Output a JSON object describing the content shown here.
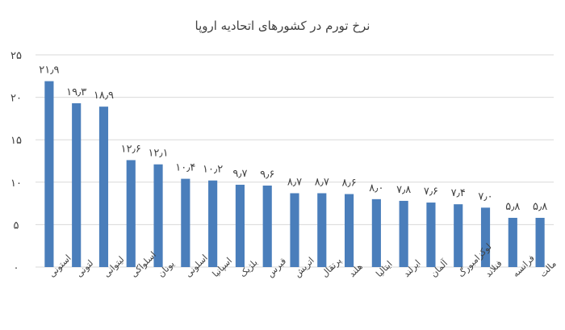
{
  "chart_data": {
    "type": "bar",
    "title": "نرخ تورم در کشورهای اتحادیه اروپا",
    "xlabel": "",
    "ylabel": "",
    "ylim": [
      0,
      25
    ],
    "y_ticks": [
      0,
      5,
      10,
      15,
      20,
      25
    ],
    "y_tick_labels": [
      "۰",
      "۵",
      "۱۰",
      "۱۵",
      "۲۰",
      "۲۵"
    ],
    "grid": true,
    "legend": "none",
    "bar_color": "#4a7ebb",
    "categories": [
      "استونی",
      "لتونی",
      "لیتوانی",
      "اسلواکی",
      "یونان",
      "اسلونی",
      "اسپانیا",
      "بلژیک",
      "قبرس",
      "اتریش",
      "پرتقال",
      "هلند",
      "ایتالیا",
      "ایرلند",
      "آلمان",
      "لوکزامبورگ",
      "فنلاند",
      "فرانسه",
      "مالت"
    ],
    "values": [
      21.9,
      19.3,
      18.9,
      12.6,
      12.1,
      10.4,
      10.2,
      9.7,
      9.6,
      8.7,
      8.7,
      8.6,
      8.0,
      7.8,
      7.6,
      7.4,
      7.0,
      5.8,
      5.8
    ],
    "value_labels": [
      "۲۱٫۹",
      "۱۹٫۳",
      "۱۸٫۹",
      "۱۲٫۶",
      "۱۲٫۱",
      "۱۰٫۴",
      "۱۰٫۲",
      "۹٫۷",
      "۹٫۶",
      "۸٫۷",
      "۸٫۷",
      "۸٫۶",
      "۸٫۰",
      "۷٫۸",
      "۷٫۶",
      "۷٫۴",
      "۷٫۰",
      "۵٫۸",
      "۵٫۸"
    ]
  }
}
